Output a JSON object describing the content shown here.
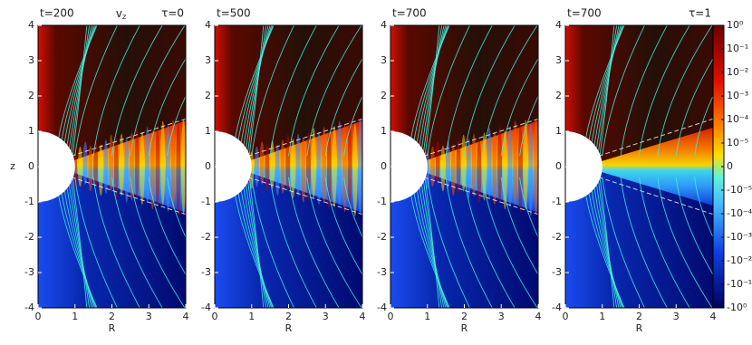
{
  "chart_data": [
    {
      "type": "image",
      "title_left": "t=200",
      "quantity": {
        "base": "v",
        "sub": "z"
      },
      "title_right": "τ=0",
      "xlabel": "R",
      "ylabel": "z",
      "xlim": [
        0,
        4
      ],
      "ylim": [
        -4,
        4
      ],
      "xticks": [
        0,
        1,
        2,
        3,
        4
      ],
      "yticks": [
        -4,
        -3,
        -2,
        -1,
        0,
        1,
        2,
        3,
        4
      ]
    },
    {
      "type": "image",
      "title_left": "t=500",
      "xlabel": "R",
      "xlim": [
        0,
        4
      ],
      "ylim": [
        -4,
        4
      ],
      "xticks": [
        0,
        1,
        2,
        3,
        4
      ],
      "yticks": [
        -4,
        -3,
        -2,
        -1,
        0,
        1,
        2,
        3,
        4
      ]
    },
    {
      "type": "image",
      "title_left": "t=700",
      "xlabel": "R",
      "xlim": [
        0,
        4
      ],
      "ylim": [
        -4,
        4
      ],
      "xticks": [
        0,
        1,
        2,
        3,
        4
      ],
      "yticks": [
        -4,
        -3,
        -2,
        -1,
        0,
        1,
        2,
        3,
        4
      ]
    },
    {
      "type": "image",
      "title_left": "t=700",
      "title_right": "τ=1",
      "xlabel": "R",
      "xlim": [
        0,
        4
      ],
      "ylim": [
        -4,
        4
      ],
      "xticks": [
        0,
        1,
        2,
        3,
        4
      ],
      "yticks": [
        -4,
        -3,
        -2,
        -1,
        0,
        1,
        2,
        3,
        4
      ],
      "colorbar": {
        "scale": "symlog",
        "linthresh": 1e-05,
        "lim": [
          -1,
          1
        ],
        "ticks": [
          {
            "value": 1,
            "label": "10⁰"
          },
          {
            "value": 0.1,
            "label": "10⁻¹"
          },
          {
            "value": 0.01,
            "label": "10⁻²"
          },
          {
            "value": 0.001,
            "label": "10⁻³"
          },
          {
            "value": 0.0001,
            "label": "10⁻⁴"
          },
          {
            "value": 1e-05,
            "label": "10⁻⁵"
          },
          0,
          {
            "value": -1e-05,
            "label": "-10⁻⁵"
          },
          {
            "value": -0.0001,
            "label": "-10⁻⁴"
          },
          {
            "value": -0.001,
            "label": "-10⁻³"
          },
          {
            "value": -0.01,
            "label": "-10⁻²"
          },
          {
            "value": -0.1,
            "label": "-10⁻¹"
          },
          {
            "value": -1,
            "label": "-10⁰"
          }
        ]
      }
    }
  ]
}
